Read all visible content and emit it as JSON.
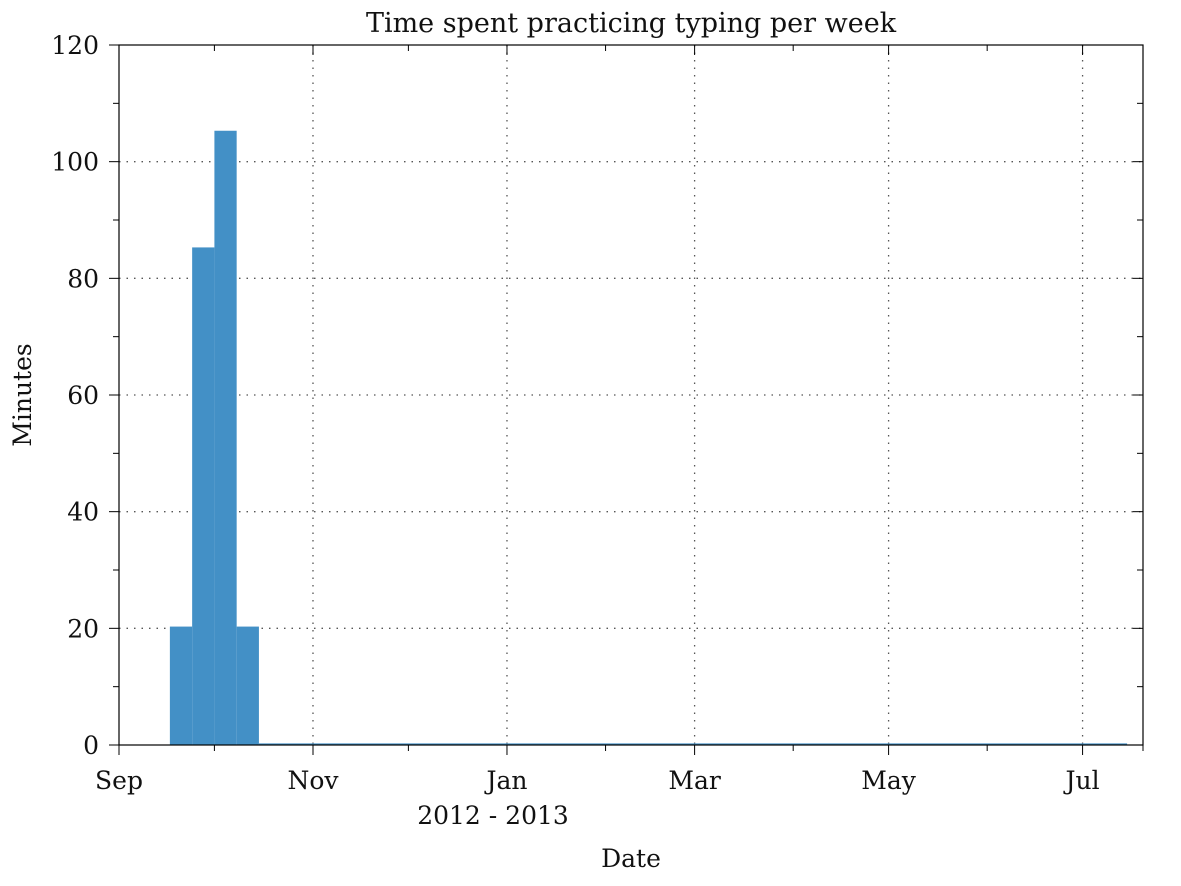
{
  "chart_data": {
    "type": "bar",
    "title": "Time spent practicing typing per week",
    "xlabel": "Date",
    "ylabel": "Minutes",
    "x_sublabel": "2012 - 2013",
    "x_axis": {
      "type": "date",
      "range": [
        "2012-09-01",
        "2013-07-20"
      ],
      "major_ticks": [
        {
          "date": "2012-09-01",
          "label": "Sep"
        },
        {
          "date": "2012-11-01",
          "label": "Nov"
        },
        {
          "date": "2013-01-01",
          "label": "Jan"
        },
        {
          "date": "2013-03-01",
          "label": "Mar"
        },
        {
          "date": "2013-05-01",
          "label": "May"
        },
        {
          "date": "2013-07-01",
          "label": "Jul"
        }
      ],
      "minor_ticks": [
        "2012-10-01",
        "2012-12-01",
        "2013-02-01",
        "2013-04-01",
        "2013-06-01"
      ]
    },
    "ylim": [
      0,
      120
    ],
    "y_ticks": [
      0,
      20,
      40,
      60,
      80,
      100,
      120
    ],
    "y_minor_ticks": [
      10,
      30,
      50,
      70,
      90,
      110
    ],
    "grid": true,
    "color": "#4390c6",
    "bars": [
      {
        "start": "2012-09-17",
        "end": "2012-09-24",
        "value": 20.3
      },
      {
        "start": "2012-09-24",
        "end": "2012-10-01",
        "value": 85.3
      },
      {
        "start": "2012-10-01",
        "end": "2012-10-08",
        "value": 105.3
      },
      {
        "start": "2012-10-08",
        "end": "2012-10-15",
        "value": 20.3
      },
      {
        "start": "2012-10-15",
        "end": "2013-07-15",
        "value": 0
      }
    ]
  }
}
